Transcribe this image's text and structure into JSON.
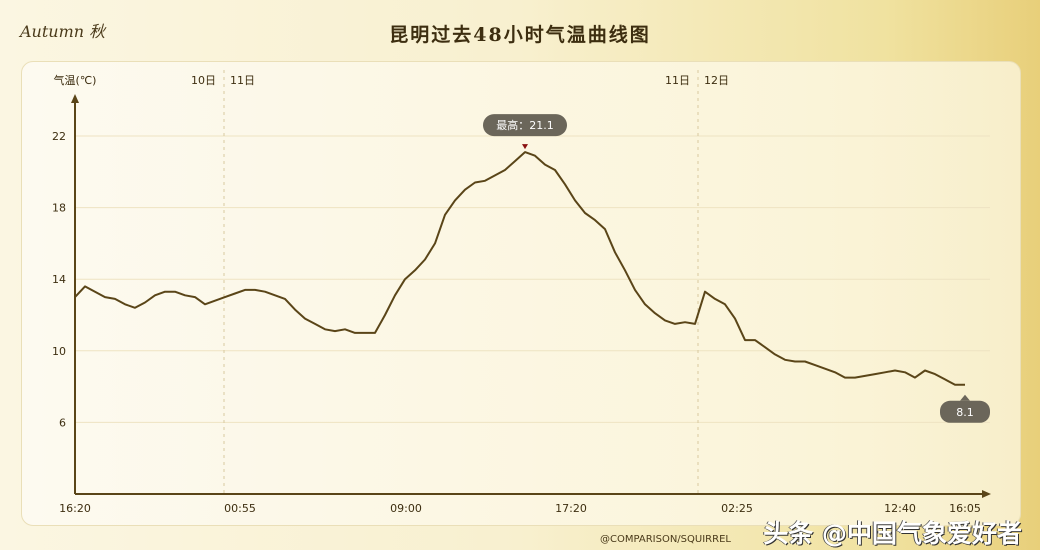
{
  "brand": "Autumn 秋",
  "chart_data": {
    "type": "line",
    "title": "昆明过去48小时气温曲线图",
    "ylabel": "气温(℃)",
    "xlabel": "",
    "ylim": [
      2,
      24
    ],
    "y_ticks": [
      6,
      10,
      14,
      18,
      22
    ],
    "x_tick_labels": [
      "16:20",
      "00:55",
      "09:00",
      "17:20",
      "02:25",
      "12:40",
      "16:05"
    ],
    "day_labels": [
      "10日",
      "11日",
      "11日",
      "12日"
    ],
    "grid": true,
    "line_color": "#5a4518",
    "values": [
      13.0,
      13.6,
      13.3,
      13.0,
      12.9,
      12.6,
      12.4,
      12.7,
      13.1,
      13.3,
      13.3,
      13.1,
      13.0,
      12.6,
      12.8,
      13.0,
      13.2,
      13.4,
      13.4,
      13.3,
      13.1,
      12.9,
      12.3,
      11.8,
      11.5,
      11.2,
      11.1,
      11.2,
      11.0,
      11.0,
      11.0,
      12.0,
      13.1,
      14.0,
      14.5,
      15.1,
      16.0,
      17.6,
      18.4,
      19.0,
      19.4,
      19.5,
      19.8,
      20.1,
      20.6,
      21.1,
      20.9,
      20.4,
      20.1,
      19.3,
      18.4,
      17.7,
      17.3,
      16.8,
      15.5,
      14.5,
      13.4,
      12.6,
      12.1,
      11.7,
      11.5,
      11.6,
      11.5,
      13.3,
      12.9,
      12.6,
      11.8,
      10.6,
      10.6,
      10.2,
      9.8,
      9.5,
      9.4,
      9.4,
      9.2,
      9.0,
      8.8,
      8.5,
      8.5,
      8.6,
      8.7,
      8.8,
      8.9,
      8.8,
      8.5,
      8.9,
      8.7,
      8.4,
      8.1,
      8.1
    ],
    "max_label": "最高：21.1",
    "max_value": 21.1,
    "last_label": "8.1",
    "last_value": 8.1
  },
  "watermark": "头条 @中国气象爱好者",
  "credit": "@COMPARISON/SQUIRREL"
}
